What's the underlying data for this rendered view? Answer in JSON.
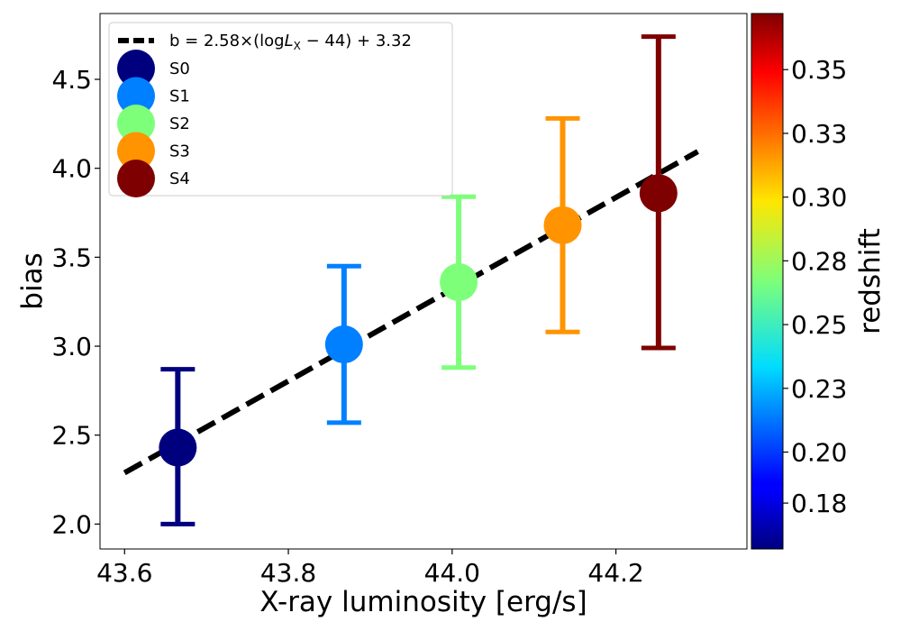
{
  "chart_data": {
    "type": "scatter",
    "xlabel": "X-ray luminosity [erg/s]",
    "ylabel": "bias",
    "xlim": [
      43.57,
      44.36
    ],
    "ylim": [
      1.86,
      4.87
    ],
    "x_ticks": [
      43.6,
      43.8,
      44.0,
      44.2
    ],
    "x_tick_labels": [
      "43.6",
      "43.8",
      "44.0",
      "44.2"
    ],
    "y_ticks": [
      2.0,
      2.5,
      3.0,
      3.5,
      4.0,
      4.5
    ],
    "y_tick_labels": [
      "2.0",
      "2.5",
      "3.0",
      "3.5",
      "4.0",
      "4.5"
    ],
    "fit_line": {
      "label_prefix": "b = 2.58×(log",
      "label_var": "L",
      "label_sub": "X",
      "label_suffix": " − 44) + 3.32",
      "slope": 2.58,
      "pivot": 44,
      "intercept": 3.32,
      "x_range": [
        43.6,
        44.3
      ],
      "color": "#000000",
      "style": "dashed"
    },
    "series": [
      {
        "name": "S0",
        "x": 43.665,
        "y": 2.43,
        "y_low": 2.0,
        "y_high": 2.87,
        "color": "#00007f"
      },
      {
        "name": "S1",
        "x": 43.868,
        "y": 3.01,
        "y_low": 2.57,
        "y_high": 3.45,
        "color": "#0080ff"
      },
      {
        "name": "S2",
        "x": 44.008,
        "y": 3.36,
        "y_low": 2.88,
        "y_high": 3.84,
        "color": "#7dff7a"
      },
      {
        "name": "S3",
        "x": 44.135,
        "y": 3.68,
        "y_low": 3.08,
        "y_high": 4.28,
        "color": "#ff9400"
      },
      {
        "name": "S4",
        "x": 44.252,
        "y": 3.86,
        "y_low": 2.99,
        "y_high": 4.74,
        "color": "#7f0000"
      }
    ],
    "legend_position": "upper-left",
    "colorbar": {
      "label": "redshift",
      "range": [
        0.162,
        0.372
      ],
      "ticks": [
        0.18,
        0.2,
        0.225,
        0.25,
        0.275,
        0.3,
        0.325,
        0.35
      ],
      "tick_labels": [
        "0.18",
        "0.20",
        "0.23",
        "0.25",
        "0.28",
        "0.30",
        "0.33",
        "0.35"
      ],
      "colormap": "jet"
    }
  }
}
